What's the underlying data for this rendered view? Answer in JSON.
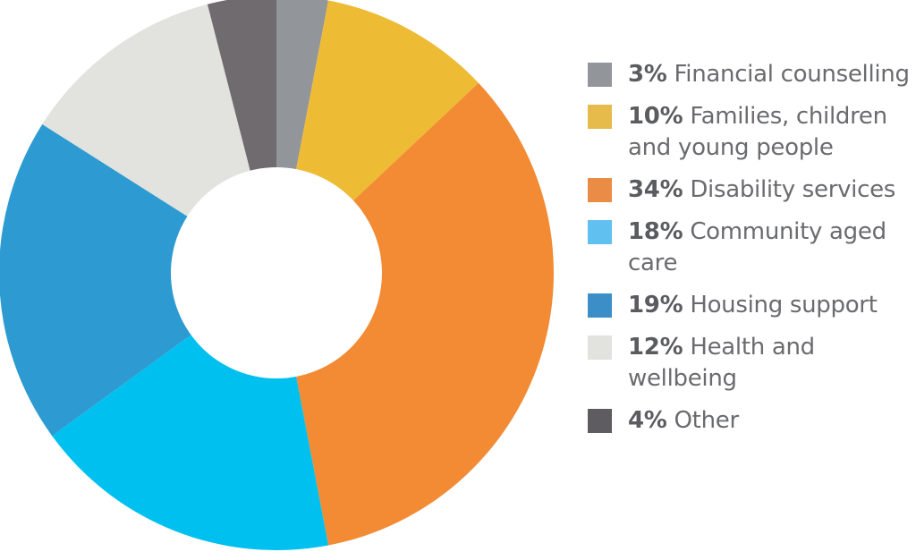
{
  "chart_data": {
    "type": "pie",
    "donut": true,
    "start_angle_deg": 0,
    "direction": "clockwise",
    "slices": [
      {
        "percent_label": "3%",
        "value": 3,
        "label": "Financial counselling",
        "color": "#929599"
      },
      {
        "percent_label": "10%",
        "value": 10,
        "label": "Families, children and young people",
        "color": "#eebb35"
      },
      {
        "percent_label": "34%",
        "value": 34,
        "label": "Disability services",
        "color": "#f28b34"
      },
      {
        "percent_label": "18%",
        "value": 18,
        "label": "Community aged care",
        "color": "#00c0ef"
      },
      {
        "percent_label": "19%",
        "value": 19,
        "label": "Housing support",
        "color": "#2d9bd2"
      },
      {
        "percent_label": "12%",
        "value": 12,
        "label": "Health and wellbeing",
        "color": "#e2e2de"
      },
      {
        "percent_label": "4%",
        "value": 4,
        "label": "Other",
        "color": "#706b6e"
      }
    ],
    "legend_swatch_colors": [
      "#929599",
      "#e6bb4c",
      "#eb8c46",
      "#60c0f0",
      "#3b8ec8",
      "#e2e2de",
      "#5e5c60"
    ],
    "legend_position": "right"
  }
}
